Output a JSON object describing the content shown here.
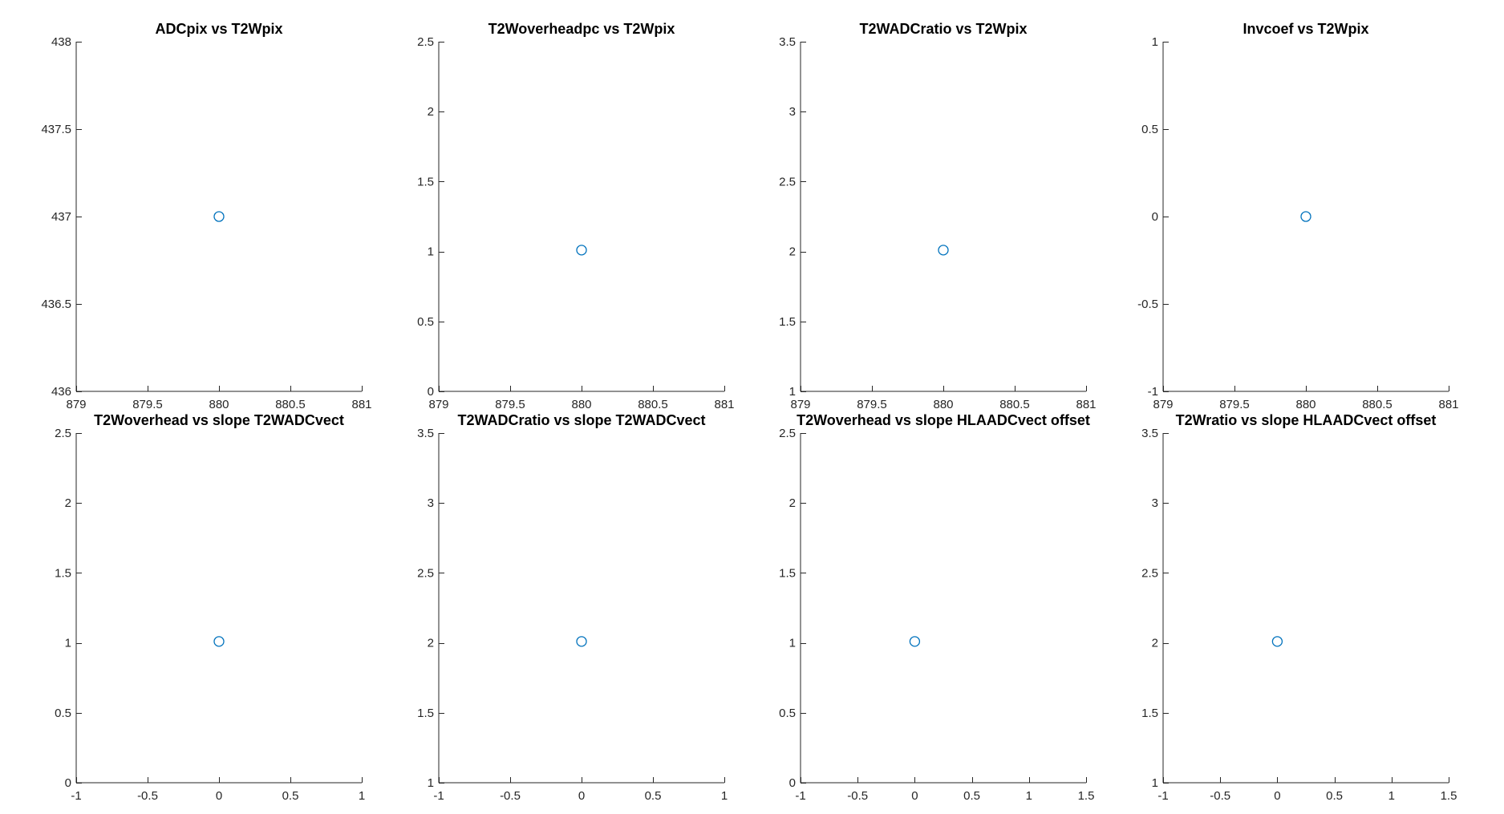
{
  "figure": {
    "marker_color": "#0072BD",
    "marker_shape": "circle-open",
    "axis_color": "#262626"
  },
  "chart_data": [
    {
      "type": "scatter",
      "title": "ADCpix vs T2Wpix",
      "xlim": [
        879,
        881
      ],
      "ylim": [
        436,
        438
      ],
      "xticks": [
        879,
        879.5,
        880,
        880.5,
        881
      ],
      "yticks": [
        436,
        436.5,
        437,
        437.5,
        438
      ],
      "xticklabels": [
        "879",
        "879.5",
        "880",
        "880.5",
        "881"
      ],
      "yticklabels": [
        "436",
        "436.5",
        "437",
        "437.5",
        "438"
      ],
      "x": [
        880
      ],
      "y": [
        437
      ],
      "grid": false
    },
    {
      "type": "scatter",
      "title": "T2Woverheadpc vs T2Wpix",
      "xlim": [
        879,
        881
      ],
      "ylim": [
        0,
        2.5
      ],
      "xticks": [
        879,
        879.5,
        880,
        880.5,
        881
      ],
      "yticks": [
        0,
        0.5,
        1,
        1.5,
        2,
        2.5
      ],
      "xticklabels": [
        "879",
        "879.5",
        "880",
        "880.5",
        "881"
      ],
      "yticklabels": [
        "0",
        "0.5",
        "1",
        "1.5",
        "2",
        "2.5"
      ],
      "x": [
        880
      ],
      "y": [
        1.01
      ],
      "grid": false
    },
    {
      "type": "scatter",
      "title": "T2WADCratio vs T2Wpix",
      "xlim": [
        879,
        881
      ],
      "ylim": [
        1,
        3.5
      ],
      "xticks": [
        879,
        879.5,
        880,
        880.5,
        881
      ],
      "yticks": [
        1,
        1.5,
        2,
        2.5,
        3,
        3.5
      ],
      "xticklabels": [
        "879",
        "879.5",
        "880",
        "880.5",
        "881"
      ],
      "yticklabels": [
        "1",
        "1.5",
        "2",
        "2.5",
        "3",
        "3.5"
      ],
      "x": [
        880
      ],
      "y": [
        2.01
      ],
      "grid": false
    },
    {
      "type": "scatter",
      "title": "Invcoef vs T2Wpix",
      "xlim": [
        879,
        881
      ],
      "ylim": [
        -1,
        1
      ],
      "xticks": [
        879,
        879.5,
        880,
        880.5,
        881
      ],
      "yticks": [
        -1,
        -0.5,
        0,
        0.5,
        1
      ],
      "xticklabels": [
        "879",
        "879.5",
        "880",
        "880.5",
        "881"
      ],
      "yticklabels": [
        "-1",
        "-0.5",
        "0",
        "0.5",
        "1"
      ],
      "x": [
        880
      ],
      "y": [
        0
      ],
      "grid": false
    },
    {
      "type": "scatter",
      "title": "T2Woverhead vs slope T2WADCvect",
      "xlim": [
        -1,
        1
      ],
      "ylim": [
        0,
        2.5
      ],
      "xticks": [
        -1,
        -0.5,
        0,
        0.5,
        1
      ],
      "yticks": [
        0,
        0.5,
        1,
        1.5,
        2,
        2.5
      ],
      "xticklabels": [
        "-1",
        "-0.5",
        "0",
        "0.5",
        "1"
      ],
      "yticklabels": [
        "0",
        "0.5",
        "1",
        "1.5",
        "2",
        "2.5"
      ],
      "x": [
        0
      ],
      "y": [
        1.01
      ],
      "grid": false
    },
    {
      "type": "scatter",
      "title": "T2WADCratio vs slope T2WADCvect",
      "xlim": [
        -1,
        1
      ],
      "ylim": [
        1,
        3.5
      ],
      "xticks": [
        -1,
        -0.5,
        0,
        0.5,
        1
      ],
      "yticks": [
        1,
        1.5,
        2,
        2.5,
        3,
        3.5
      ],
      "xticklabels": [
        "-1",
        "-0.5",
        "0",
        "0.5",
        "1"
      ],
      "yticklabels": [
        "1",
        "1.5",
        "2",
        "2.5",
        "3",
        "3.5"
      ],
      "x": [
        0
      ],
      "y": [
        2.01
      ],
      "grid": false
    },
    {
      "type": "scatter",
      "title": "T2Woverhead vs slope HLAADCvect offset",
      "xlim": [
        -1,
        1.5
      ],
      "ylim": [
        0,
        2.5
      ],
      "xticks": [
        -1,
        -0.5,
        0,
        0.5,
        1,
        1.5
      ],
      "yticks": [
        0,
        0.5,
        1,
        1.5,
        2,
        2.5
      ],
      "xticklabels": [
        "-1",
        "-0.5",
        "0",
        "0.5",
        "1",
        "1.5"
      ],
      "yticklabels": [
        "0",
        "0.5",
        "1",
        "1.5",
        "2",
        "2.5"
      ],
      "x": [
        0
      ],
      "y": [
        1.01
      ],
      "grid": false
    },
    {
      "type": "scatter",
      "title": "T2Wratio vs slope HLAADCvect offset",
      "xlim": [
        -1,
        1.5
      ],
      "ylim": [
        1,
        3.5
      ],
      "xticks": [
        -1,
        -0.5,
        0,
        0.5,
        1,
        1.5
      ],
      "yticks": [
        1,
        1.5,
        2,
        2.5,
        3,
        3.5
      ],
      "xticklabels": [
        "-1",
        "-0.5",
        "0",
        "0.5",
        "1",
        "1.5"
      ],
      "yticklabels": [
        "1",
        "1.5",
        "2",
        "2.5",
        "3",
        "3.5"
      ],
      "x": [
        0
      ],
      "y": [
        2.01
      ],
      "grid": false
    }
  ]
}
